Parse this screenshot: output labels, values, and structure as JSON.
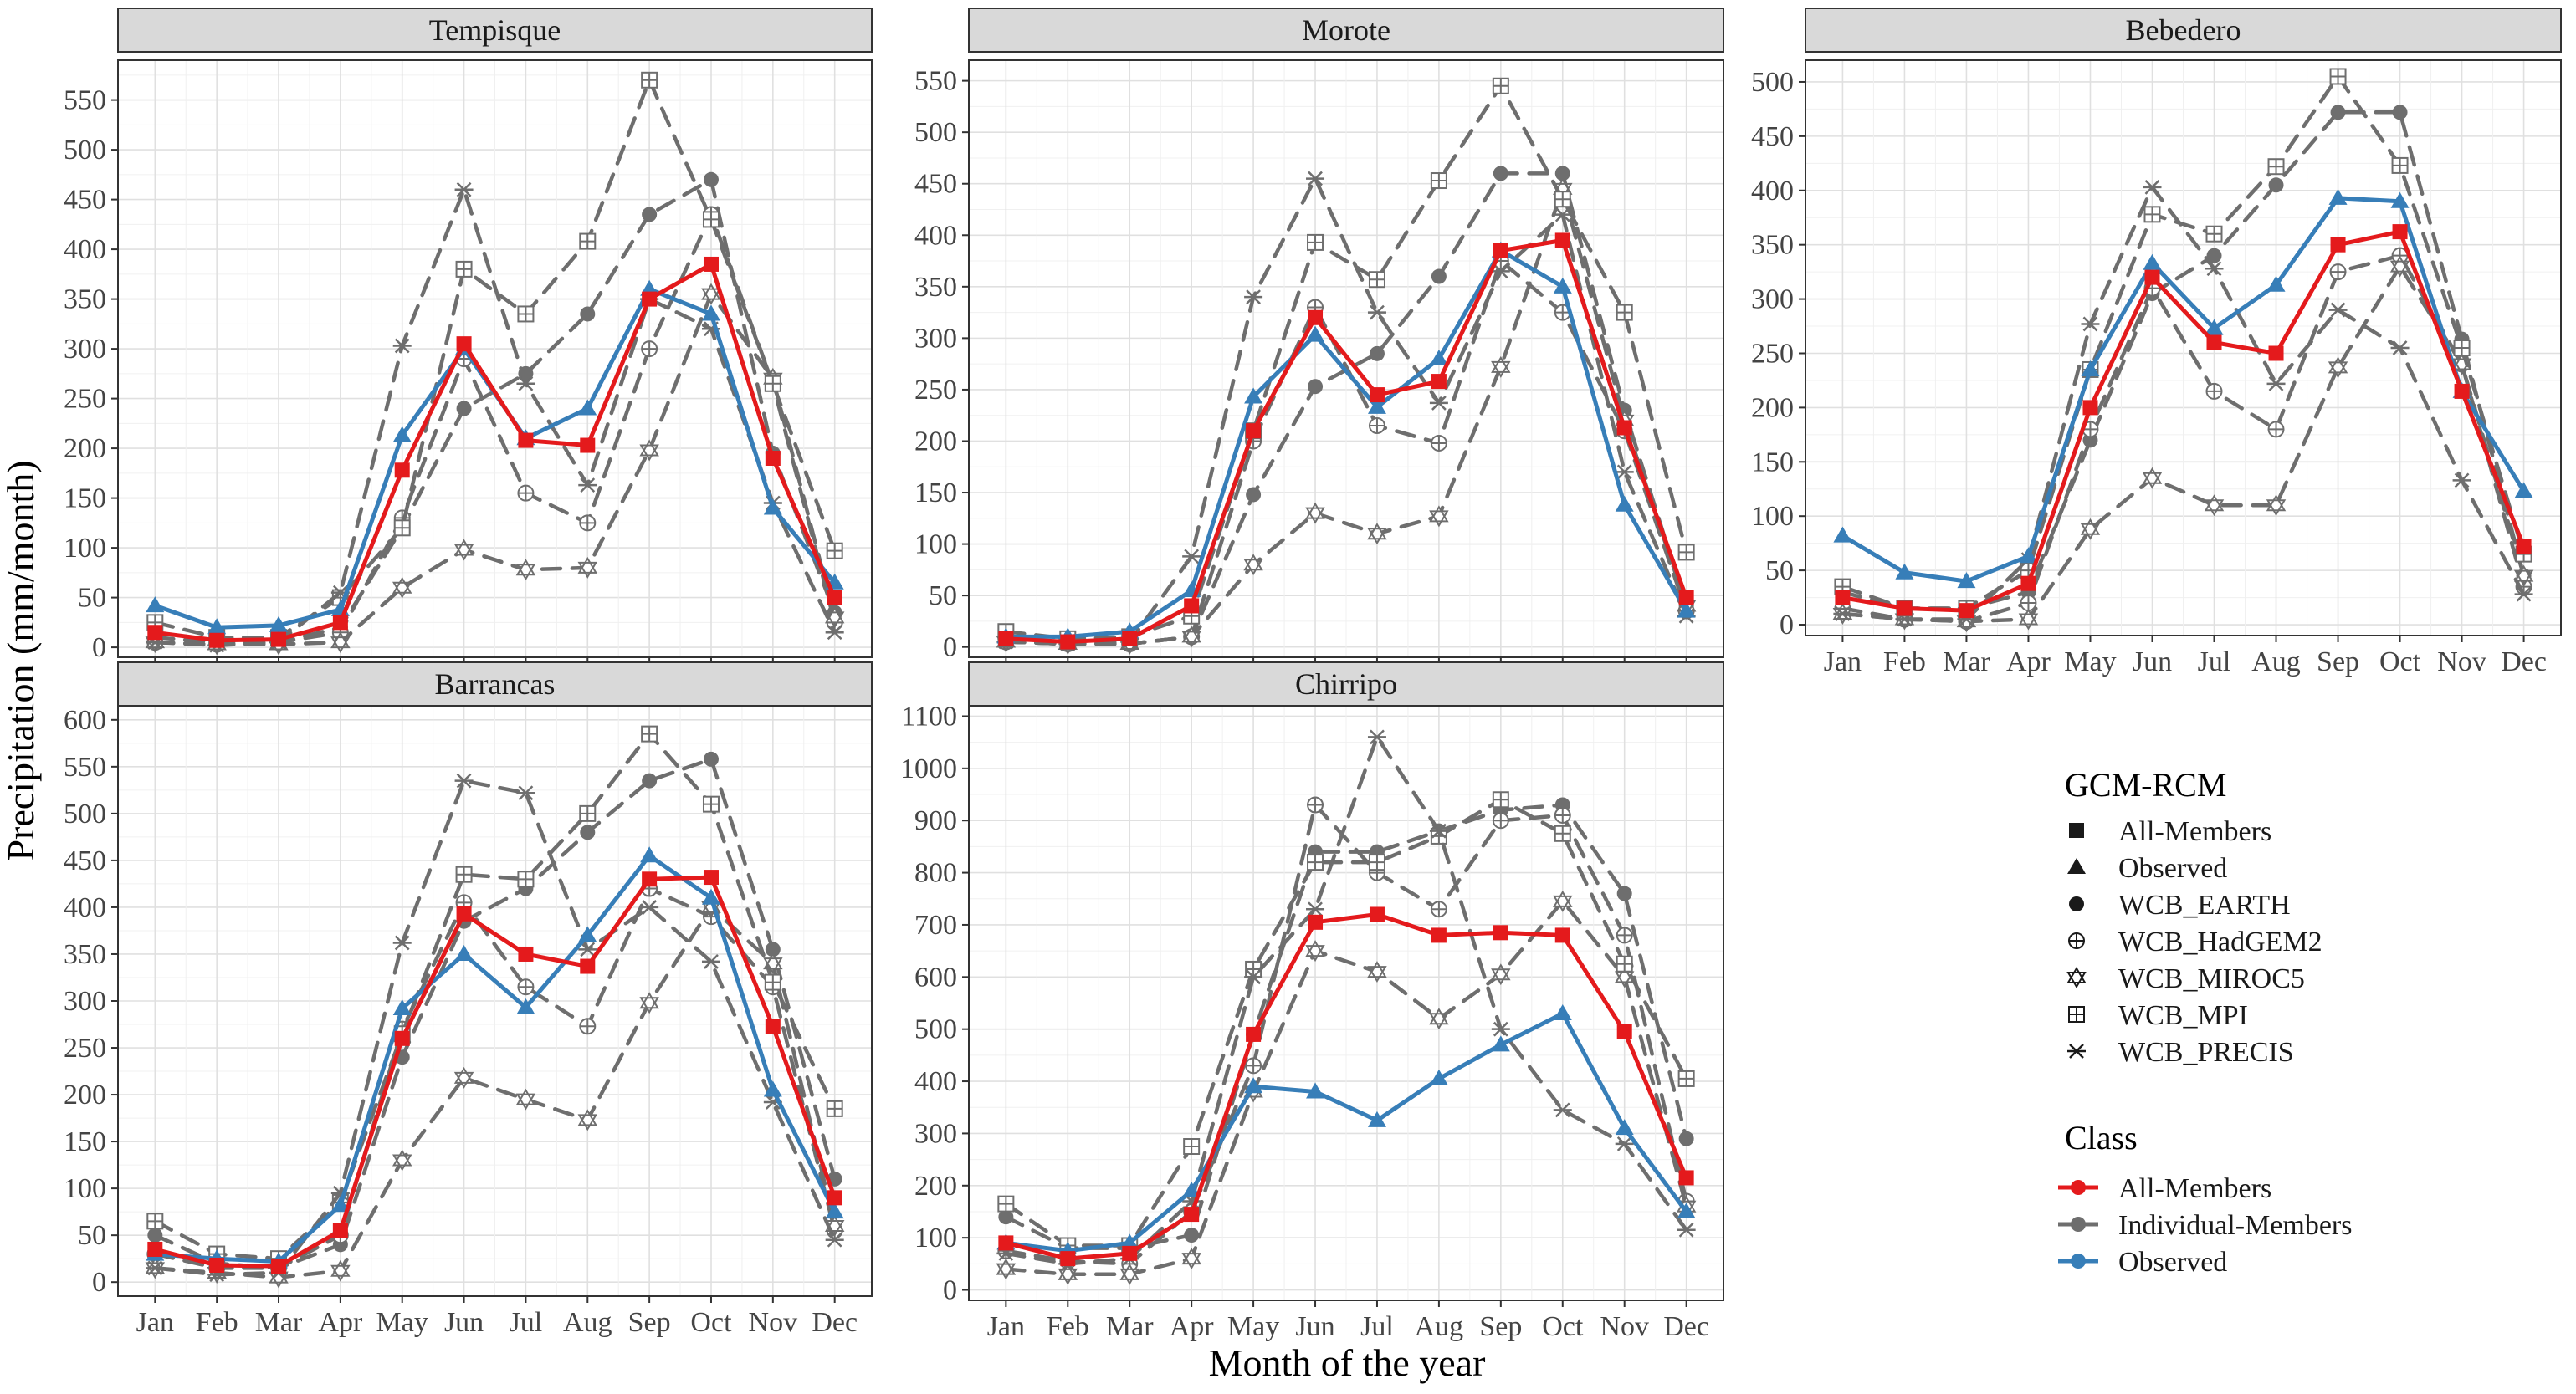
{
  "chart_data": {
    "type": "line",
    "ylabel": "Precipitation (mm/month)",
    "xlabel": "Month of the year",
    "months": [
      "Jan",
      "Feb",
      "Mar",
      "Apr",
      "May",
      "Jun",
      "Jul",
      "Aug",
      "Sep",
      "Oct",
      "Nov",
      "Dec"
    ],
    "legend": {
      "gcm_title": "GCM-RCM",
      "gcm_items": [
        {
          "shape": "square",
          "label": "All-Members"
        },
        {
          "shape": "triangle",
          "label": "Observed"
        },
        {
          "shape": "circle",
          "label": "WCB_EARTH"
        },
        {
          "shape": "circleplus",
          "label": "WCB_HadGEM2"
        },
        {
          "shape": "star6",
          "label": "WCB_MIROC5"
        },
        {
          "shape": "squareplus",
          "label": "WCB_MPI"
        },
        {
          "shape": "asterisk",
          "label": "WCB_PRECIS"
        }
      ],
      "class_title": "Class",
      "class_items": [
        {
          "label": "All-Members",
          "color": "#e41a1c"
        },
        {
          "label": "Individual-Members",
          "color": "#6e6e6e"
        },
        {
          "label": "Observed",
          "color": "#377eb8"
        }
      ]
    },
    "panels": [
      {
        "title": "Tempisque",
        "ylim": [
          -10,
          590
        ],
        "yticks": [
          0,
          50,
          100,
          150,
          200,
          250,
          300,
          350,
          400,
          450,
          500,
          550
        ],
        "series": [
          {
            "name": "WCB_EARTH",
            "class": "Individual-Members",
            "shape": "circle",
            "values": [
              10,
              5,
              5,
              20,
              120,
              240,
              275,
              335,
              435,
              470,
              195,
              35
            ]
          },
          {
            "name": "WCB_HadGEM2",
            "class": "Individual-Members",
            "shape": "circleplus",
            "values": [
              5,
              3,
              5,
              15,
              130,
              290,
              155,
              125,
              300,
              435,
              265,
              25
            ]
          },
          {
            "name": "WCB_MIROC5",
            "class": "Individual-Members",
            "shape": "star6",
            "values": [
              5,
              3,
              3,
              5,
              60,
              98,
              78,
              80,
              198,
              355,
              270,
              30
            ]
          },
          {
            "name": "WCB_MPI",
            "class": "Individual-Members",
            "shape": "squareplus",
            "values": [
              25,
              10,
              10,
              50,
              120,
              380,
              335,
              408,
              570,
              430,
              265,
              97
            ]
          },
          {
            "name": "WCB_PRECIS",
            "class": "Individual-Members",
            "shape": "asterisk",
            "values": [
              5,
              2,
              5,
              55,
              303,
              460,
              265,
              163,
              350,
              320,
              145,
              15
            ]
          },
          {
            "name": "Observed",
            "class": "Observed",
            "shape": "triangle",
            "values": [
              42,
              20,
              22,
              38,
              213,
              300,
              210,
              240,
              360,
              335,
              140,
              65
            ]
          },
          {
            "name": "All-Members",
            "class": "All-Members",
            "shape": "square",
            "values": [
              15,
              7,
              8,
              25,
              178,
              305,
              208,
              203,
              350,
              385,
              190,
              50
            ]
          }
        ]
      },
      {
        "title": "Morote",
        "ylim": [
          -10,
          570
        ],
        "yticks": [
          0,
          50,
          100,
          150,
          200,
          250,
          300,
          350,
          400,
          450,
          500,
          550
        ],
        "series": [
          {
            "name": "WCB_EARTH",
            "class": "Individual-Members",
            "shape": "circle",
            "values": [
              5,
              3,
              3,
              10,
              148,
              253,
              285,
              360,
              460,
              460,
              230,
              40
            ]
          },
          {
            "name": "WCB_HadGEM2",
            "class": "Individual-Members",
            "shape": "circleplus",
            "values": [
              5,
              3,
              3,
              10,
              200,
              330,
              215,
              198,
              375,
              325,
              210,
              35
            ]
          },
          {
            "name": "WCB_MIROC5",
            "class": "Individual-Members",
            "shape": "star6",
            "values": [
              5,
              3,
              3,
              10,
              80,
              130,
              110,
              127,
              272,
              445,
              220,
              40
            ]
          },
          {
            "name": "WCB_MPI",
            "class": "Individual-Members",
            "shape": "squareplus",
            "values": [
              15,
              8,
              10,
              30,
              210,
              393,
              357,
              453,
              545,
              435,
              325,
              92
            ]
          },
          {
            "name": "WCB_PRECIS",
            "class": "Individual-Members",
            "shape": "asterisk",
            "values": [
              5,
              3,
              5,
              88,
              340,
              455,
              325,
              237,
              365,
              420,
              170,
              30
            ]
          },
          {
            "name": "Observed",
            "class": "Observed",
            "shape": "triangle",
            "values": [
              10,
              10,
              15,
              55,
              243,
              303,
              233,
              280,
              385,
              350,
              138,
              35
            ]
          },
          {
            "name": "All-Members",
            "class": "All-Members",
            "shape": "square",
            "values": [
              8,
              5,
              8,
              40,
              210,
              320,
              245,
              258,
              385,
              395,
              213,
              48
            ]
          }
        ]
      },
      {
        "title": "Bebedero",
        "ylim": [
          -10,
          520
        ],
        "yticks": [
          0,
          50,
          100,
          150,
          200,
          250,
          300,
          350,
          400,
          450,
          500
        ],
        "series": [
          {
            "name": "WCB_EARTH",
            "class": "Individual-Members",
            "shape": "circle",
            "values": [
              30,
              15,
              15,
              30,
              170,
              305,
              340,
              405,
              472,
              472,
              263,
              45
            ]
          },
          {
            "name": "WCB_HadGEM2",
            "class": "Individual-Members",
            "shape": "circleplus",
            "values": [
              15,
              5,
              3,
              20,
              180,
              310,
              215,
              180,
              325,
              340,
              240,
              35
            ]
          },
          {
            "name": "WCB_MIROC5",
            "class": "Individual-Members",
            "shape": "star6",
            "values": [
              10,
              5,
              3,
              5,
              88,
              135,
              110,
              110,
              237,
              330,
              240,
              45
            ]
          },
          {
            "name": "WCB_MPI",
            "class": "Individual-Members",
            "shape": "squareplus",
            "values": [
              35,
              15,
              15,
              50,
              235,
              378,
              360,
              422,
              505,
              423,
              255,
              65
            ]
          },
          {
            "name": "WCB_PRECIS",
            "class": "Individual-Members",
            "shape": "asterisk",
            "values": [
              10,
              5,
              5,
              60,
              277,
              403,
              328,
              222,
              290,
              255,
              133,
              28
            ]
          },
          {
            "name": "Observed",
            "class": "Observed",
            "shape": "triangle",
            "values": [
              82,
              48,
              40,
              63,
              235,
              333,
              273,
              313,
              393,
              390,
              215,
              123
            ]
          },
          {
            "name": "All-Members",
            "class": "All-Members",
            "shape": "square",
            "values": [
              25,
              15,
              13,
              38,
              200,
              320,
              260,
              250,
              350,
              362,
              215,
              72
            ]
          }
        ]
      },
      {
        "title": "Barrancas",
        "ylim": [
          -15,
          615
        ],
        "yticks": [
          0,
          50,
          100,
          150,
          200,
          250,
          300,
          350,
          400,
          450,
          500,
          550,
          600
        ],
        "series": [
          {
            "name": "WCB_EARTH",
            "class": "Individual-Members",
            "shape": "circle",
            "values": [
              50,
              20,
              15,
              40,
              240,
              385,
              420,
              480,
              535,
              558,
              355,
              110
            ]
          },
          {
            "name": "WCB_HadGEM2",
            "class": "Individual-Members",
            "shape": "circleplus",
            "values": [
              30,
              15,
              15,
              50,
              270,
              405,
              315,
              273,
              420,
              390,
              315,
              55
            ]
          },
          {
            "name": "WCB_MIROC5",
            "class": "Individual-Members",
            "shape": "star6",
            "values": [
              15,
              10,
              5,
              12,
              130,
              218,
              195,
              173,
              298,
              400,
              340,
              60
            ]
          },
          {
            "name": "WCB_MPI",
            "class": "Individual-Members",
            "shape": "squareplus",
            "values": [
              65,
              30,
              25,
              85,
              265,
              435,
              430,
              500,
              585,
              510,
              320,
              185
            ]
          },
          {
            "name": "WCB_PRECIS",
            "class": "Individual-Members",
            "shape": "asterisk",
            "values": [
              15,
              8,
              10,
              95,
              362,
              535,
              522,
              355,
              400,
              342,
              192,
              45
            ]
          },
          {
            "name": "Observed",
            "class": "Observed",
            "shape": "triangle",
            "values": [
              30,
              25,
              22,
              82,
              292,
              350,
              293,
              370,
              455,
              410,
              205,
              75
            ]
          },
          {
            "name": "All-Members",
            "class": "All-Members",
            "shape": "square",
            "values": [
              35,
              18,
              17,
              55,
              260,
              393,
              350,
              337,
              430,
              432,
              273,
              90
            ]
          }
        ]
      },
      {
        "title": "Chirripo",
        "ylim": [
          -20,
          1120
        ],
        "yticks": [
          0,
          100,
          200,
          300,
          400,
          500,
          600,
          700,
          800,
          900,
          1000,
          1100
        ],
        "series": [
          {
            "name": "WCB_EARTH",
            "class": "Individual-Members",
            "shape": "circle",
            "values": [
              140,
              80,
              80,
              105,
              490,
              840,
              840,
              880,
              920,
              930,
              760,
              290
            ]
          },
          {
            "name": "WCB_HadGEM2",
            "class": "Individual-Members",
            "shape": "circleplus",
            "values": [
              75,
              55,
              50,
              150,
              430,
              930,
              800,
              730,
              900,
              910,
              680,
              170
            ]
          },
          {
            "name": "WCB_MIROC5",
            "class": "Individual-Members",
            "shape": "star6",
            "values": [
              40,
              30,
              30,
              60,
              380,
              650,
              610,
              520,
              605,
              745,
              600,
              160
            ]
          },
          {
            "name": "WCB_MPI",
            "class": "Individual-Members",
            "shape": "squareplus",
            "values": [
              165,
              85,
              85,
              275,
              615,
              820,
              820,
              870,
              940,
              875,
              625,
              405
            ]
          },
          {
            "name": "WCB_PRECIS",
            "class": "Individual-Members",
            "shape": "asterisk",
            "values": [
              70,
              50,
              60,
              170,
              600,
              730,
              1060,
              880,
              500,
              345,
              280,
              115
            ]
          },
          {
            "name": "Observed",
            "class": "Observed",
            "shape": "triangle",
            "values": [
              90,
              75,
              90,
              190,
              390,
              380,
              325,
              405,
              470,
              530,
              310,
              150
            ]
          },
          {
            "name": "All-Members",
            "class": "All-Members",
            "shape": "square",
            "values": [
              90,
              60,
              70,
              145,
              490,
              705,
              720,
              680,
              685,
              680,
              495,
              215
            ]
          }
        ]
      }
    ]
  }
}
